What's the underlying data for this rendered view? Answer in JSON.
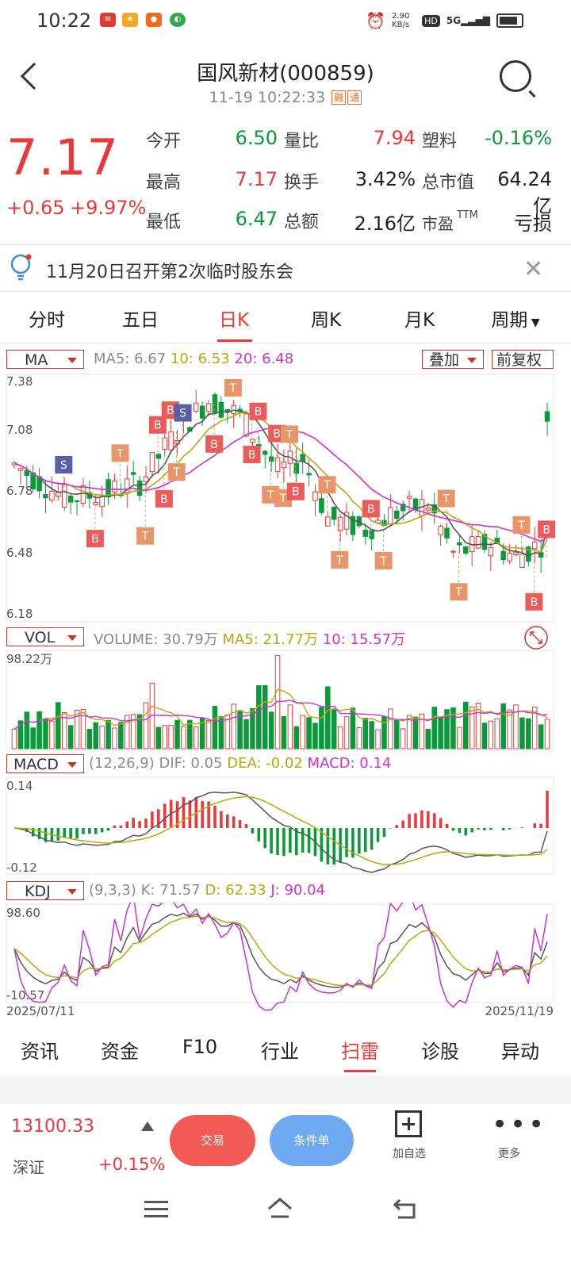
{
  "status_bar": {
    "time": "10:22",
    "net_speed": "2.90 KB/s",
    "hd": "HD",
    "signal": "5G"
  },
  "header": {
    "title": "国风新材(000859)",
    "timestamp": "11-19 10:22:33",
    "tags": [
      "融",
      "通"
    ]
  },
  "quote": {
    "price": "7.17",
    "change": "+0.65",
    "change_pct": "+9.97%",
    "fields": [
      {
        "label": "今开",
        "value": "6.50",
        "color": "green"
      },
      {
        "label": "量比",
        "value": "7.94",
        "color": "red"
      },
      {
        "label": "塑料",
        "value": "-0.16%",
        "color": "green",
        "label_color": "orange"
      },
      {
        "label": "最高",
        "value": "7.17",
        "color": "red"
      },
      {
        "label": "换手",
        "value": "3.42%",
        "color": "black"
      },
      {
        "label": "总市值",
        "value": "64.24亿",
        "color": "black"
      },
      {
        "label": "最低",
        "value": "6.47",
        "color": "green"
      },
      {
        "label": "总额",
        "value": "2.16亿",
        "color": "black"
      },
      {
        "label": "市盈",
        "sup": "TTM",
        "value": "亏损",
        "color": "black"
      }
    ]
  },
  "notice": {
    "text": "11月20日召开第2次临时股东会"
  },
  "period_tabs": [
    "分时",
    "五日",
    "日K",
    "周K",
    "月K",
    "周期"
  ],
  "active_period_tab": "日K",
  "main_chart": {
    "indicator": "MA",
    "ma5": "MA5: 6.67",
    "ma10": "10: 6.53",
    "ma20": "20: 6.48",
    "overlay_label": "叠加",
    "adjust_label": "前复权",
    "y_ticks": [
      "7.38",
      "7.08",
      "6.78",
      "6.48",
      "6.18"
    ]
  },
  "volume_chart": {
    "indicator": "VOL",
    "volume": "VOLUME: 30.79万",
    "ma5": "MA5: 21.77万",
    "ma10": "10: 15.57万",
    "y_max": "98.22万"
  },
  "macd_chart": {
    "indicator": "MACD",
    "params": "(12,26,9)",
    "dif": "DIF: 0.05",
    "dea": "DEA: -0.02",
    "macd": "MACD: 0.14",
    "y_max": "0.14",
    "y_min": "-0.12"
  },
  "kdj_chart": {
    "indicator": "KDJ",
    "params": "(9,3,3)",
    "k": "K: 71.57",
    "d": "D: 62.33",
    "j": "J: 90.04",
    "y_max": "98.60",
    "y_min": "-10.57"
  },
  "x_axis": {
    "start": "2025/07/11",
    "end": "2025/11/19"
  },
  "bottom_tabs": [
    "资讯",
    "资金",
    "F10",
    "行业",
    "扫雷",
    "诊股",
    "异动"
  ],
  "active_bottom_tab": "扫雷",
  "index_bar": {
    "value": "13100.33",
    "name": "深证",
    "change": "+0.15%"
  },
  "actions": {
    "trade": "交易",
    "condition": "条件单",
    "add_watch": "加自选",
    "more": "更多"
  },
  "colors": {
    "up": "#e8393b",
    "down": "#0a9a3a",
    "ma5": "#555555",
    "ma10": "#b8a812",
    "ma20": "#cc33cc"
  }
}
